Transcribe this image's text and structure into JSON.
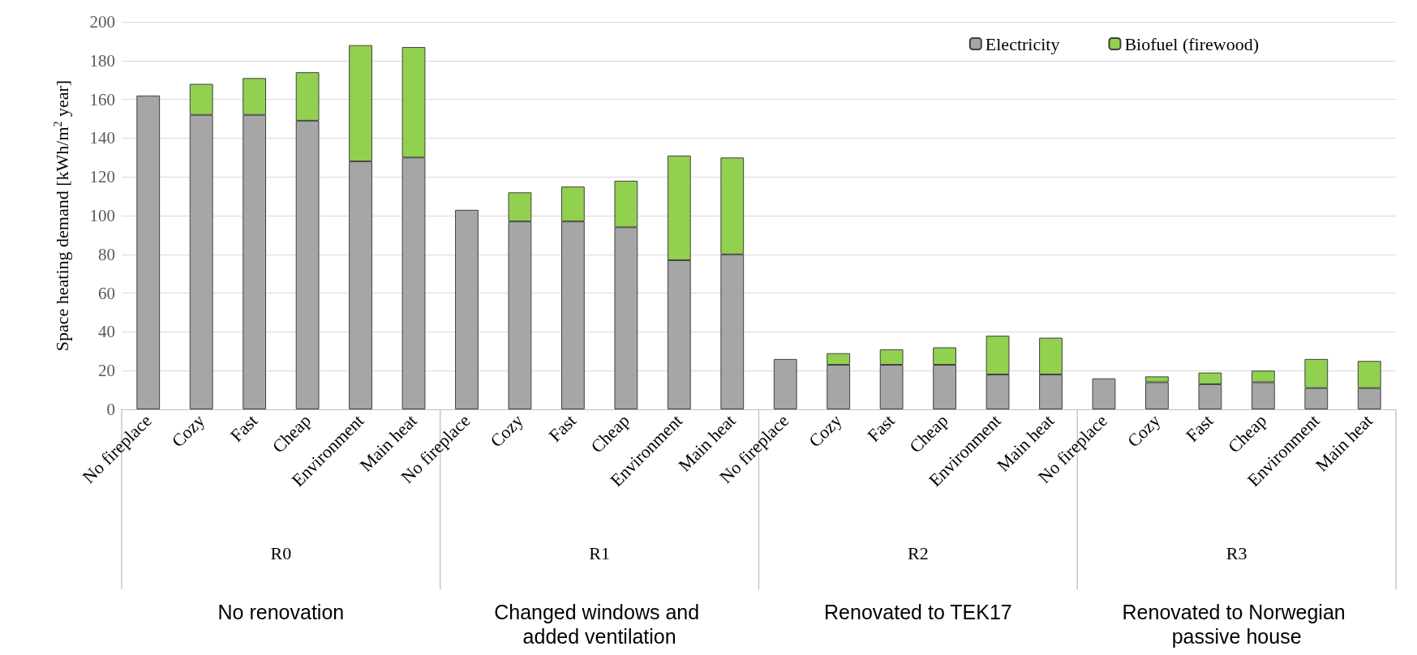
{
  "chart_data": {
    "type": "bar",
    "stacked": true,
    "ylabel": "Space heating demand [kWh/m$^{2}$ year]",
    "categories": [
      "No fireplace",
      "Cozy",
      "Fast",
      "Cheap",
      "Environment",
      "Main heat",
      "No fireplace",
      "Cozy",
      "Fast",
      "Cheap",
      "Environment",
      "Main heat",
      "No fireplace",
      "Cozy",
      "Fast",
      "Cheap",
      "Environment",
      "Main heat",
      "No fireplace",
      "Cozy",
      "Fast",
      "Cheap",
      "Environment",
      "Main heat"
    ],
    "series": [
      {
        "name": "Electricity",
        "color": "#a6a6a6",
        "values": [
          162,
          152,
          152,
          149,
          128,
          130,
          103,
          97,
          97,
          94,
          77,
          80,
          26,
          23,
          23,
          23,
          18,
          18,
          16,
          14,
          13,
          14,
          11,
          11
        ]
      },
      {
        "name": "Biofuel (firewood)",
        "color": "#92d050",
        "values": [
          null,
          16,
          19,
          25,
          60,
          57,
          null,
          15,
          18,
          24,
          54,
          50,
          null,
          6,
          8,
          9,
          20,
          19,
          null,
          3,
          6,
          6,
          15,
          14
        ]
      }
    ],
    "ylim": [
      0,
      200
    ],
    "yticks": [
      0,
      20,
      40,
      60,
      80,
      100,
      120,
      140,
      160,
      180,
      200
    ],
    "grid": "y",
    "legend": "top right",
    "annotations": [
      "R0",
      "R1",
      "R2",
      "R3",
      "No renovation",
      "Changed windows and added ventilation",
      "Renovated to TEK17",
      "Renovated to Norwegian passive house"
    ]
  }
}
